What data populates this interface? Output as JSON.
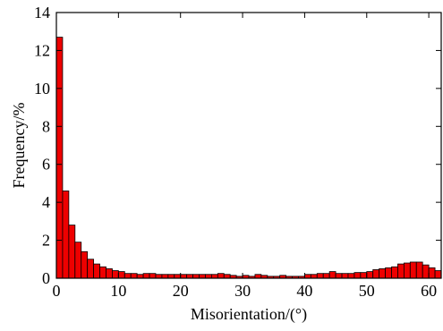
{
  "chart_data": {
    "type": "bar",
    "xlabel": "Misorientation/(°)",
    "ylabel": "Frequency/%",
    "xlim": [
      0,
      62
    ],
    "ylim": [
      0,
      14
    ],
    "xticks": [
      0,
      10,
      20,
      30,
      40,
      50,
      60
    ],
    "yticks": [
      0,
      2,
      4,
      6,
      8,
      10,
      12,
      14
    ],
    "bin_width": 1,
    "bar_color": "#ee0000",
    "grid": false,
    "legend": "none",
    "series": [
      {
        "x": [
          0.5,
          1.5,
          2.5,
          3.5,
          4.5,
          5.5,
          6.5,
          7.5,
          8.5,
          9.5,
          10.5,
          11.5,
          12.5,
          13.5,
          14.5,
          15.5,
          16.5,
          17.5,
          18.5,
          19.5,
          20.5,
          21.5,
          22.5,
          23.5,
          24.5,
          25.5,
          26.5,
          27.5,
          28.5,
          29.5,
          30.5,
          31.5,
          32.5,
          33.5,
          34.5,
          35.5,
          36.5,
          37.5,
          38.5,
          39.5,
          40.5,
          41.5,
          42.5,
          43.5,
          44.5,
          45.5,
          46.5,
          47.5,
          48.5,
          49.5,
          50.5,
          51.5,
          52.5,
          53.5,
          54.5,
          55.5,
          56.5,
          57.5,
          58.5,
          59.5,
          60.5,
          61.5
        ],
        "values": [
          12.7,
          4.6,
          2.8,
          1.9,
          1.4,
          1.0,
          0.75,
          0.6,
          0.5,
          0.4,
          0.35,
          0.25,
          0.25,
          0.2,
          0.25,
          0.25,
          0.2,
          0.2,
          0.2,
          0.2,
          0.2,
          0.2,
          0.2,
          0.2,
          0.2,
          0.2,
          0.25,
          0.2,
          0.15,
          0.1,
          0.15,
          0.1,
          0.2,
          0.15,
          0.1,
          0.1,
          0.15,
          0.1,
          0.1,
          0.1,
          0.2,
          0.2,
          0.25,
          0.25,
          0.35,
          0.25,
          0.25,
          0.25,
          0.3,
          0.3,
          0.35,
          0.45,
          0.5,
          0.55,
          0.6,
          0.75,
          0.8,
          0.85,
          0.85,
          0.7,
          0.55,
          0.4
        ]
      }
    ]
  }
}
